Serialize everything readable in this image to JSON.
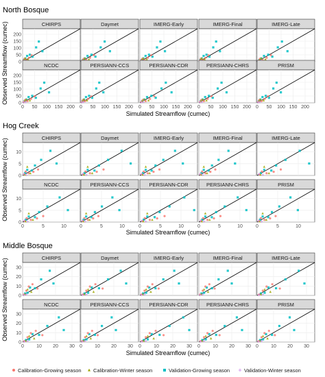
{
  "chart_data": {
    "type": "scatter",
    "subtitle_y_label": "Observed Streamflow (cumec)",
    "x_label": "Simulated Streamflow (cumec)",
    "panels": [
      "CHIRPS",
      "Daymet",
      "IMERG-Early",
      "IMERG-Final",
      "IMERG-Late",
      "NCDC",
      "PERSIANN-CCS",
      "PERSIANN-CDR",
      "PERSIANN-CHRS",
      "PRISM"
    ],
    "grid": true,
    "reference_line": "1:1",
    "legend": {
      "position": "bottom",
      "entries": [
        {
          "label": "Calibration-Growing season",
          "color": "#F8766D",
          "shape": "circle"
        },
        {
          "label": "Calibration-Winter season",
          "color": "#9EA500",
          "shape": "triangle"
        },
        {
          "label": "Validation-Growing season",
          "color": "#00BFC4",
          "shape": "square"
        },
        {
          "label": "Validation-Winter season",
          "color": "#D59CF0",
          "shape": "plus"
        }
      ]
    },
    "groups": [
      {
        "title": "North Bosque",
        "xlim": [
          0,
          240
        ],
        "ylim": [
          0,
          240
        ],
        "xticks": [
          0,
          50,
          100,
          150,
          200
        ],
        "yticks": [
          0,
          50,
          100,
          150,
          200
        ],
        "points": [
          {
            "s": 2,
            "x": 90,
            "y": 140
          },
          {
            "s": 2,
            "x": 75,
            "y": 110
          },
          {
            "s": 2,
            "x": 40,
            "y": 60
          },
          {
            "s": 2,
            "x": 25,
            "y": 40
          },
          {
            "s": 2,
            "x": 15,
            "y": 25
          },
          {
            "s": 2,
            "x": 110,
            "y": 90
          },
          {
            "s": 2,
            "x": 55,
            "y": 35
          },
          {
            "s": 2,
            "x": 8,
            "y": 12
          },
          {
            "s": 0,
            "x": 20,
            "y": 15
          },
          {
            "s": 0,
            "x": 10,
            "y": 20
          },
          {
            "s": 0,
            "x": 35,
            "y": 30
          },
          {
            "s": 0,
            "x": 5,
            "y": 8
          },
          {
            "s": 0,
            "x": 50,
            "y": 45
          },
          {
            "s": 1,
            "x": 15,
            "y": 25
          },
          {
            "s": 1,
            "x": 30,
            "y": 20
          },
          {
            "s": 1,
            "x": 8,
            "y": 10
          },
          {
            "s": 3,
            "x": 5,
            "y": 5
          },
          {
            "s": 3,
            "x": 12,
            "y": 6
          }
        ]
      },
      {
        "title": "Hog Creek",
        "xlim": [
          0,
          14
        ],
        "ylim": [
          0,
          14
        ],
        "xticks": [
          0,
          5,
          10
        ],
        "yticks": [
          0,
          5,
          10
        ],
        "points": [
          {
            "s": 2,
            "x": 9,
            "y": 10
          },
          {
            "s": 2,
            "x": 6,
            "y": 7
          },
          {
            "s": 2,
            "x": 4,
            "y": 5
          },
          {
            "s": 2,
            "x": 3,
            "y": 2
          },
          {
            "s": 2,
            "x": 1.5,
            "y": 2.5
          },
          {
            "s": 2,
            "x": 11,
            "y": 6
          },
          {
            "s": 2,
            "x": 0.8,
            "y": 1
          },
          {
            "s": 0,
            "x": 2,
            "y": 1
          },
          {
            "s": 0,
            "x": 1,
            "y": 2
          },
          {
            "s": 0,
            "x": 3.5,
            "y": 1.5
          },
          {
            "s": 0,
            "x": 0.5,
            "y": 0.5
          },
          {
            "s": 0,
            "x": 5,
            "y": 3
          },
          {
            "s": 1,
            "x": 1.5,
            "y": 3.5
          },
          {
            "s": 1,
            "x": 2.5,
            "y": 1
          },
          {
            "s": 1,
            "x": 0.7,
            "y": 0.4
          },
          {
            "s": 3,
            "x": 0.4,
            "y": 0.6
          },
          {
            "s": 3,
            "x": 1.2,
            "y": 0.3
          }
        ]
      },
      {
        "title": "Middle Bosque",
        "xlim": [
          0,
          35
        ],
        "ylim": [
          0,
          35
        ],
        "xticks": [
          0,
          10,
          20,
          30
        ],
        "yticks": [
          0,
          10,
          20,
          30
        ],
        "points": [
          {
            "s": 2,
            "x": 22,
            "y": 25
          },
          {
            "s": 2,
            "x": 15,
            "y": 18
          },
          {
            "s": 2,
            "x": 10,
            "y": 9
          },
          {
            "s": 2,
            "x": 6,
            "y": 8
          },
          {
            "s": 2,
            "x": 4,
            "y": 3
          },
          {
            "s": 2,
            "x": 25,
            "y": 15
          },
          {
            "s": 2,
            "x": 2,
            "y": 2
          },
          {
            "s": 0,
            "x": 5,
            "y": 10
          },
          {
            "s": 0,
            "x": 3,
            "y": 6
          },
          {
            "s": 0,
            "x": 12,
            "y": 7
          },
          {
            "s": 0,
            "x": 1,
            "y": 1
          },
          {
            "s": 0,
            "x": 8,
            "y": 14
          },
          {
            "s": 1,
            "x": 4,
            "y": 6
          },
          {
            "s": 1,
            "x": 7,
            "y": 4
          },
          {
            "s": 1,
            "x": 2,
            "y": 1.5
          },
          {
            "s": 3,
            "x": 1,
            "y": 0.5
          },
          {
            "s": 3,
            "x": 3,
            "y": 1
          }
        ]
      }
    ]
  }
}
